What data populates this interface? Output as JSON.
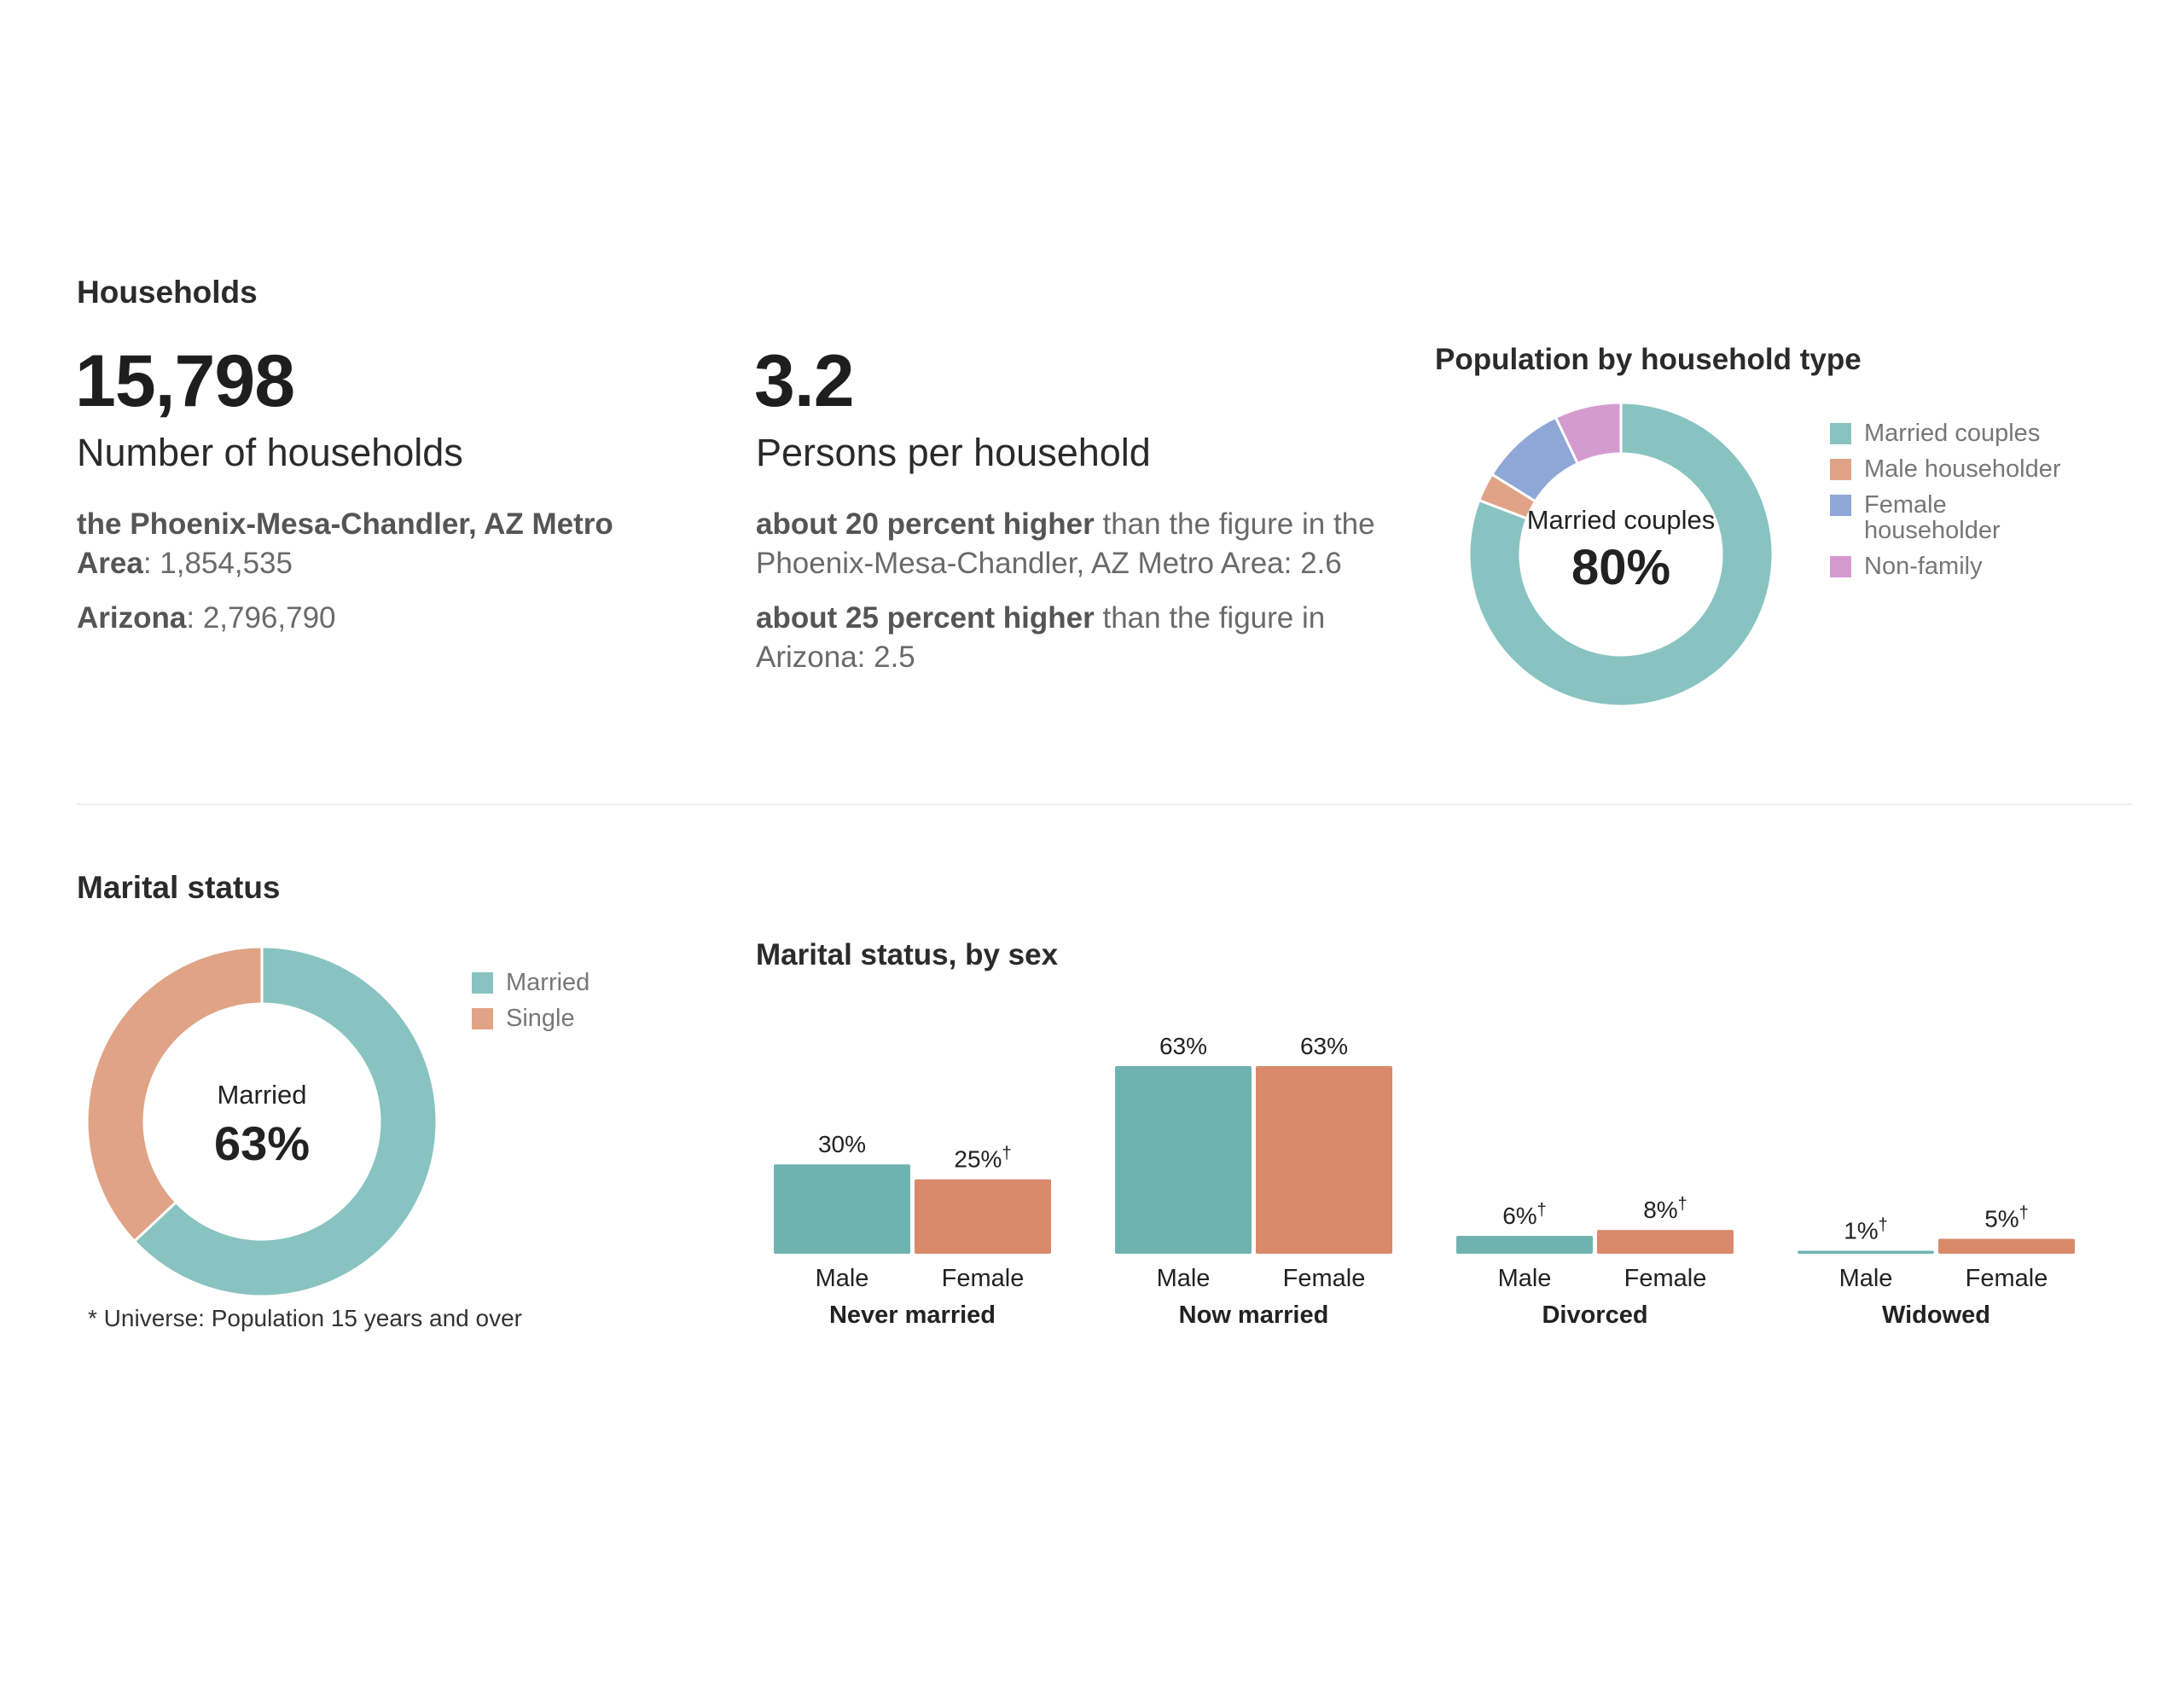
{
  "households": {
    "section_title": "Households",
    "count": {
      "value": "15,798",
      "label": "Number of households",
      "comparisons": [
        {
          "label": "the Phoenix-Mesa-Chandler, AZ Metro Area",
          "value": "1,854,535"
        },
        {
          "label": "Arizona",
          "value": "2,796,790"
        }
      ]
    },
    "persons": {
      "value": "3.2",
      "label": "Persons per household",
      "comparisons": [
        {
          "bold": "about 20 percent higher",
          "text": "than the figure in the Phoenix-Mesa-Chandler, AZ Metro Area: 2.6"
        },
        {
          "bold": "about 25 percent higher",
          "text": "than the figure in Arizona: 2.5"
        }
      ]
    }
  },
  "marital": {
    "section_title": "Marital status",
    "footnote": "* Universe: Population 15 years and over"
  },
  "chart_data": [
    {
      "type": "pie",
      "title": "Population by household type",
      "center_label": "Married couples",
      "center_value": "80%",
      "slices": [
        {
          "name": "Married couples",
          "value": 80,
          "color": "#88c3c1"
        },
        {
          "name": "Male householder",
          "value": 3,
          "color": "#e0a386"
        },
        {
          "name": "Female householder",
          "value": 9,
          "color": "#8fa7d6"
        },
        {
          "name": "Non-family",
          "value": 7,
          "color": "#d59bd0"
        }
      ],
      "legend": [
        "Married couples",
        "Male householder",
        "Female householder",
        "Non-family"
      ],
      "legend_position": "right"
    },
    {
      "type": "pie",
      "title": "",
      "center_label": "Married",
      "center_value": "63%",
      "slices": [
        {
          "name": "Married",
          "value": 63,
          "color": "#88c3c1"
        },
        {
          "name": "Single",
          "value": 37,
          "color": "#e0a386"
        }
      ],
      "legend": [
        "Married",
        "Single"
      ],
      "legend_position": "right"
    },
    {
      "type": "bar",
      "title": "Marital status, by sex",
      "groups": [
        {
          "name": "Never married",
          "bars": [
            {
              "label": "Male",
              "value": 30,
              "text": "30%",
              "dagger": false
            },
            {
              "label": "Female",
              "value": 25,
              "text": "25%",
              "dagger": true
            }
          ]
        },
        {
          "name": "Now married",
          "bars": [
            {
              "label": "Male",
              "value": 63,
              "text": "63%",
              "dagger": false
            },
            {
              "label": "Female",
              "value": 63,
              "text": "63%",
              "dagger": false
            }
          ]
        },
        {
          "name": "Divorced",
          "bars": [
            {
              "label": "Male",
              "value": 6,
              "text": "6%",
              "dagger": true
            },
            {
              "label": "Female",
              "value": 8,
              "text": "8%",
              "dagger": true
            }
          ]
        },
        {
          "name": "Widowed",
          "bars": [
            {
              "label": "Male",
              "value": 1,
              "text": "1%",
              "dagger": true
            },
            {
              "label": "Female",
              "value": 5,
              "text": "5%",
              "dagger": true
            }
          ]
        }
      ],
      "colors": {
        "Male": "#6fb3b1",
        "Female": "#d88a6b"
      },
      "dagger_symbol": "†",
      "ylim": [
        0,
        63
      ]
    }
  ]
}
